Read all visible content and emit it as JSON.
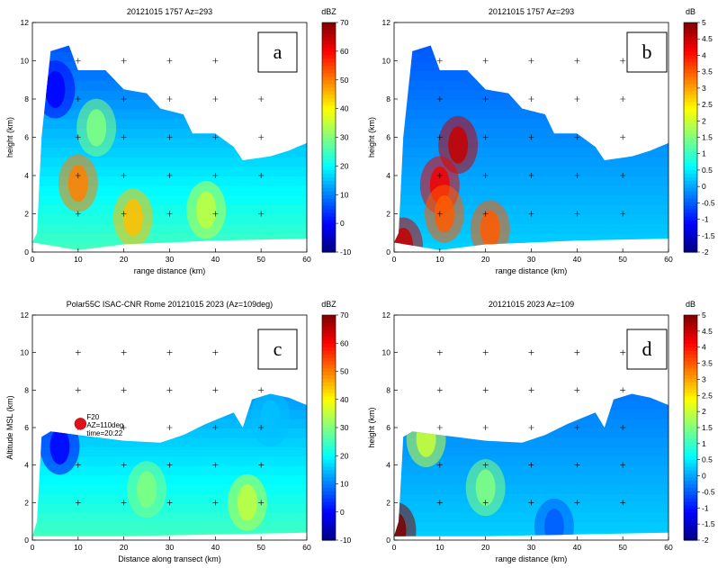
{
  "chart_data": [
    {
      "type": "heatmap",
      "panel_letter": "a",
      "title": "20121015 1757 Az=293",
      "xlabel": "range distance (km)",
      "ylabel": "height (km)",
      "xlim": [
        0,
        60
      ],
      "ylim": [
        0,
        12
      ],
      "x_ticks": [
        0,
        10,
        20,
        30,
        40,
        50,
        60
      ],
      "y_ticks": [
        0,
        2,
        4,
        6,
        8,
        10,
        12
      ],
      "grid_markers": "plus",
      "colorbar": {
        "unit": "dBZ",
        "min": -10,
        "max": 70,
        "ticks": [
          "70",
          "60",
          "50",
          "40",
          "30",
          "20",
          "10",
          "0",
          "-10"
        ],
        "colormap": "jet"
      },
      "profile_top_km": [
        [
          1,
          1
        ],
        [
          2,
          6
        ],
        [
          4,
          10.5
        ],
        [
          8,
          10.8
        ],
        [
          10,
          9.5
        ],
        [
          16,
          9.5
        ],
        [
          20,
          8.5
        ],
        [
          25,
          8.3
        ],
        [
          28,
          7.5
        ],
        [
          33,
          7.2
        ],
        [
          35,
          6.2
        ],
        [
          40,
          6.2
        ],
        [
          44,
          5.5
        ],
        [
          46,
          4.8
        ],
        [
          52,
          5.0
        ],
        [
          56,
          5.3
        ],
        [
          60,
          5.7
        ]
      ],
      "profile_bottom_km": [
        [
          0,
          0.5
        ],
        [
          10,
          0.1
        ],
        [
          20,
          0.4
        ],
        [
          40,
          0.6
        ],
        [
          60,
          0.7
        ]
      ],
      "features": [
        {
          "x": 10,
          "y": 3.6,
          "value": 50
        },
        {
          "x": 22,
          "y": 1.8,
          "value": 45
        },
        {
          "x": 14,
          "y": 6.5,
          "value": 30
        },
        {
          "x": 38,
          "y": 2.2,
          "value": 35
        },
        {
          "x": 5,
          "y": 8.5,
          "value": 0
        }
      ]
    },
    {
      "type": "heatmap",
      "panel_letter": "b",
      "title": "20121015 1757 Az=293",
      "xlabel": "range distance (km)",
      "ylabel": "height (km)",
      "xlim": [
        0,
        60
      ],
      "ylim": [
        0,
        12
      ],
      "x_ticks": [
        0,
        10,
        20,
        30,
        40,
        50,
        60
      ],
      "y_ticks": [
        0,
        2,
        4,
        6,
        8,
        10,
        12
      ],
      "grid_markers": "plus",
      "colorbar": {
        "unit": "dB",
        "min": -2,
        "max": 5,
        "ticks": [
          "5",
          "4.5",
          "4",
          "3.5",
          "3",
          "2.5",
          "2",
          "1.5",
          "1",
          "0.5",
          "0",
          "-0.5",
          "-1",
          "-1.5",
          "-2"
        ],
        "colormap": "jet"
      },
      "profile_top_km": [
        [
          1,
          1
        ],
        [
          2,
          6
        ],
        [
          4,
          10.5
        ],
        [
          8,
          10.8
        ],
        [
          10,
          9.5
        ],
        [
          16,
          9.5
        ],
        [
          20,
          8.5
        ],
        [
          25,
          8.3
        ],
        [
          28,
          7.5
        ],
        [
          33,
          7.2
        ],
        [
          35,
          6.2
        ],
        [
          40,
          6.2
        ],
        [
          44,
          5.5
        ],
        [
          46,
          4.8
        ],
        [
          52,
          5.0
        ],
        [
          56,
          5.3
        ],
        [
          60,
          5.7
        ]
      ],
      "profile_bottom_km": [
        [
          0,
          0.5
        ],
        [
          10,
          0.1
        ],
        [
          20,
          0.4
        ],
        [
          40,
          0.6
        ],
        [
          60,
          0.7
        ]
      ],
      "features": [
        {
          "x": 14,
          "y": 5.6,
          "value": 4.5
        },
        {
          "x": 10,
          "y": 3.5,
          "value": 4.2
        },
        {
          "x": 11,
          "y": 2.0,
          "value": 3.5
        },
        {
          "x": 21,
          "y": 1.2,
          "value": 3.5
        },
        {
          "x": 2,
          "y": 0.3,
          "value": 4.5
        }
      ]
    },
    {
      "type": "heatmap",
      "panel_letter": "c",
      "title": "Polar55C ISAC-CNR Rome 20121015 2023 (Az=109deg)",
      "xlabel": "Distance along transect (km)",
      "ylabel": "Altitude MSL (km)",
      "xlim": [
        0,
        60
      ],
      "ylim": [
        0,
        12
      ],
      "x_ticks": [
        0,
        10,
        20,
        30,
        40,
        50,
        60
      ],
      "y_ticks": [
        0,
        2,
        4,
        6,
        8,
        10,
        12
      ],
      "grid_markers": "plus",
      "colorbar": {
        "unit": "dBZ",
        "min": -10,
        "max": 70,
        "ticks": [
          "70",
          "60",
          "50",
          "40",
          "30",
          "20",
          "10",
          "0",
          "-10"
        ],
        "colormap": "jet"
      },
      "profile_top_km": [
        [
          1,
          1
        ],
        [
          2,
          5.5
        ],
        [
          4,
          5.8
        ],
        [
          10,
          5.6
        ],
        [
          20,
          5.3
        ],
        [
          28,
          5.2
        ],
        [
          33,
          5.6
        ],
        [
          38,
          6.2
        ],
        [
          44,
          6.8
        ],
        [
          46,
          6.0
        ],
        [
          48,
          7.5
        ],
        [
          52,
          7.8
        ],
        [
          56,
          7.6
        ],
        [
          60,
          7.2
        ]
      ],
      "profile_bottom_km": [
        [
          0,
          0.2
        ],
        [
          20,
          0.2
        ],
        [
          40,
          0.3
        ],
        [
          60,
          0.4
        ]
      ],
      "features": [
        {
          "x": 6,
          "y": 5.0,
          "value": 0
        },
        {
          "x": 25,
          "y": 2.7,
          "value": 30
        },
        {
          "x": 47,
          "y": 2.0,
          "value": 35
        },
        {
          "x": 52,
          "y": 6.5,
          "value": 15
        }
      ],
      "annotation": {
        "label": "F20",
        "line2": "AZ=110deg",
        "line3": "time=20:22",
        "x": 10.5,
        "y": 6.2
      }
    },
    {
      "type": "heatmap",
      "panel_letter": "d",
      "title": "20121015 2023 Az=109",
      "xlabel": "range distance (km)",
      "ylabel": "height (km)",
      "xlim": [
        0,
        60
      ],
      "ylim": [
        0,
        12
      ],
      "x_ticks": [
        0,
        10,
        20,
        30,
        40,
        50,
        60
      ],
      "y_ticks": [
        0,
        2,
        4,
        6,
        8,
        10,
        12
      ],
      "grid_markers": "plus",
      "colorbar": {
        "unit": "dB",
        "min": -2,
        "max": 5,
        "ticks": [
          "5",
          "4.5",
          "4",
          "3.5",
          "3",
          "2.5",
          "2",
          "1.5",
          "1",
          "0.5",
          "0",
          "-0.5",
          "-1",
          "-1.5",
          "-2"
        ],
        "colormap": "jet"
      },
      "profile_top_km": [
        [
          1,
          1
        ],
        [
          2,
          5.5
        ],
        [
          4,
          5.8
        ],
        [
          10,
          5.6
        ],
        [
          20,
          5.3
        ],
        [
          28,
          5.2
        ],
        [
          33,
          5.6
        ],
        [
          38,
          6.2
        ],
        [
          44,
          6.8
        ],
        [
          46,
          6.0
        ],
        [
          48,
          7.5
        ],
        [
          52,
          7.8
        ],
        [
          56,
          7.6
        ],
        [
          60,
          7.2
        ]
      ],
      "profile_bottom_km": [
        [
          0,
          0.2
        ],
        [
          20,
          0.2
        ],
        [
          40,
          0.3
        ],
        [
          60,
          0.4
        ]
      ],
      "features": [
        {
          "x": 7,
          "y": 5.4,
          "value": 2.0
        },
        {
          "x": 20,
          "y": 2.8,
          "value": 1.5
        },
        {
          "x": 0.5,
          "y": 0.5,
          "value": 5.0
        },
        {
          "x": 35,
          "y": 0.7,
          "value": -0.5
        }
      ]
    }
  ]
}
